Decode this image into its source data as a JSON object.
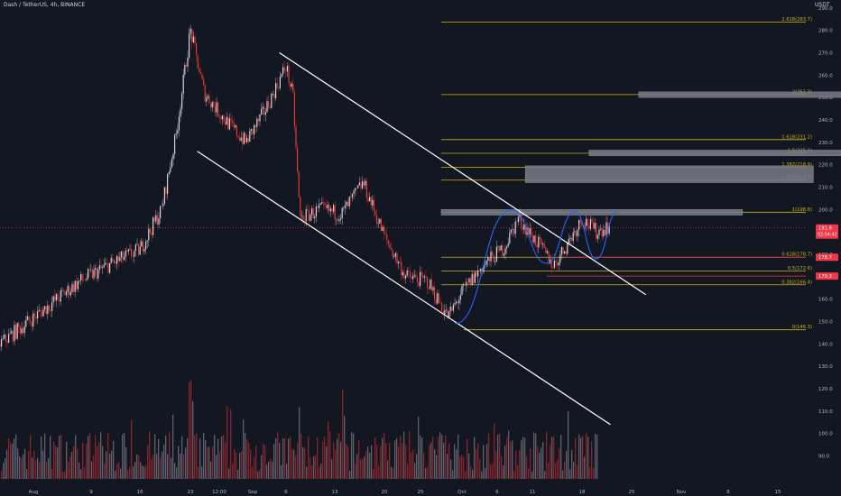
{
  "header": {
    "symbol_title": "Dash / TetherUS, 4h, BINANCE",
    "unit_label": "USDT"
  },
  "colors": {
    "background": "#131722",
    "up_candle": "#d1d4dc",
    "down_candle": "#e53935",
    "fib_line": "#c9b020",
    "trend_line": "#ffffff",
    "zone_fill": "#787b86",
    "curve": "#2962ff",
    "red_level": "#f23645"
  },
  "chart_data": {
    "type": "candlestick",
    "title": "Dash / TetherUS, 4h, BINANCE",
    "ylabel": "USDT",
    "ylim": [
      86,
      293
    ],
    "y_ticks": [
      90,
      100,
      110,
      120,
      130,
      140,
      150,
      160,
      170,
      180,
      190,
      200,
      210,
      220,
      230,
      240,
      250,
      260,
      270,
      280,
      290
    ],
    "x_ticks": [
      "Aug",
      "9",
      "16",
      "23",
      "12:00",
      "Sep",
      "6",
      "13",
      "20",
      "25",
      "Oct",
      "6",
      "11",
      "18",
      "25",
      "Nov",
      "8",
      "15"
    ],
    "price_path": [
      [
        "Aug 1",
        140
      ],
      [
        "Aug 4",
        152
      ],
      [
        "Aug 8",
        168
      ],
      [
        "Aug 12",
        176
      ],
      [
        "Aug 16",
        182
      ],
      [
        "Aug 19",
        200
      ],
      [
        "Aug 21",
        233
      ],
      [
        "Aug 23",
        280
      ],
      [
        "Aug 25",
        252
      ],
      [
        "Aug 28",
        240
      ],
      [
        "Aug 31",
        230
      ],
      [
        "Sep 3",
        245
      ],
      [
        "Sep 6",
        264
      ],
      [
        "Sep 7",
        250
      ],
      [
        "Sep 8",
        196
      ],
      [
        "Sep 11",
        200
      ],
      [
        "Sep 14",
        198
      ],
      [
        "Sep 17",
        212
      ],
      [
        "Sep 20",
        188
      ],
      [
        "Sep 23",
        170
      ],
      [
        "Sep 26",
        168
      ],
      [
        "Sep 29",
        152
      ],
      [
        "Oct 1",
        163
      ],
      [
        "Oct 4",
        175
      ],
      [
        "Oct 7",
        183
      ],
      [
        "Oct 9",
        196
      ],
      [
        "Oct 12",
        184
      ],
      [
        "Oct 14",
        175
      ],
      [
        "Oct 16",
        185
      ],
      [
        "Oct 18",
        196
      ],
      [
        "Oct 20",
        190
      ],
      [
        "Oct 22",
        193
      ]
    ],
    "fib_levels": [
      {
        "label": "0(146.3)",
        "value": 146.3
      },
      {
        "label": "0.382(166.4)",
        "value": 166.4
      },
      {
        "label": "0.5(172.6)",
        "value": 172.6
      },
      {
        "label": "0.618(178.7)",
        "value": 178.7
      },
      {
        "label": "1(198.8)",
        "value": 198.8
      },
      {
        "label": "1.272(213.1)",
        "value": 213.1
      },
      {
        "label": "1.382(218.9)",
        "value": 218.9
      },
      {
        "label": "1.5(225.1)",
        "value": 225.1
      },
      {
        "label": "1.618(231.2)",
        "value": 231.2
      },
      {
        "label": "2(251.3)",
        "value": 251.3
      },
      {
        "label": "2.618(283.7)",
        "value": 283.7
      }
    ],
    "price_tags": [
      {
        "label": "191.8",
        "sublabel": "02:54:42",
        "value": 191.8
      },
      {
        "label": "178.7",
        "value": 178.7
      },
      {
        "label": "170.3",
        "value": 170.3
      }
    ],
    "zones": [
      {
        "from": "Sep 28",
        "to": "Nov 10",
        "low": 197.5,
        "high": 200
      },
      {
        "from": "Oct 10",
        "to": "Nov 20",
        "low": 212,
        "high": 219.5
      },
      {
        "from": "Oct 19",
        "to": "Nov 30",
        "low": 224,
        "high": 226.5
      },
      {
        "from": "Oct 26",
        "to": "Nov 30",
        "low": 250,
        "high": 252.5
      }
    ]
  }
}
